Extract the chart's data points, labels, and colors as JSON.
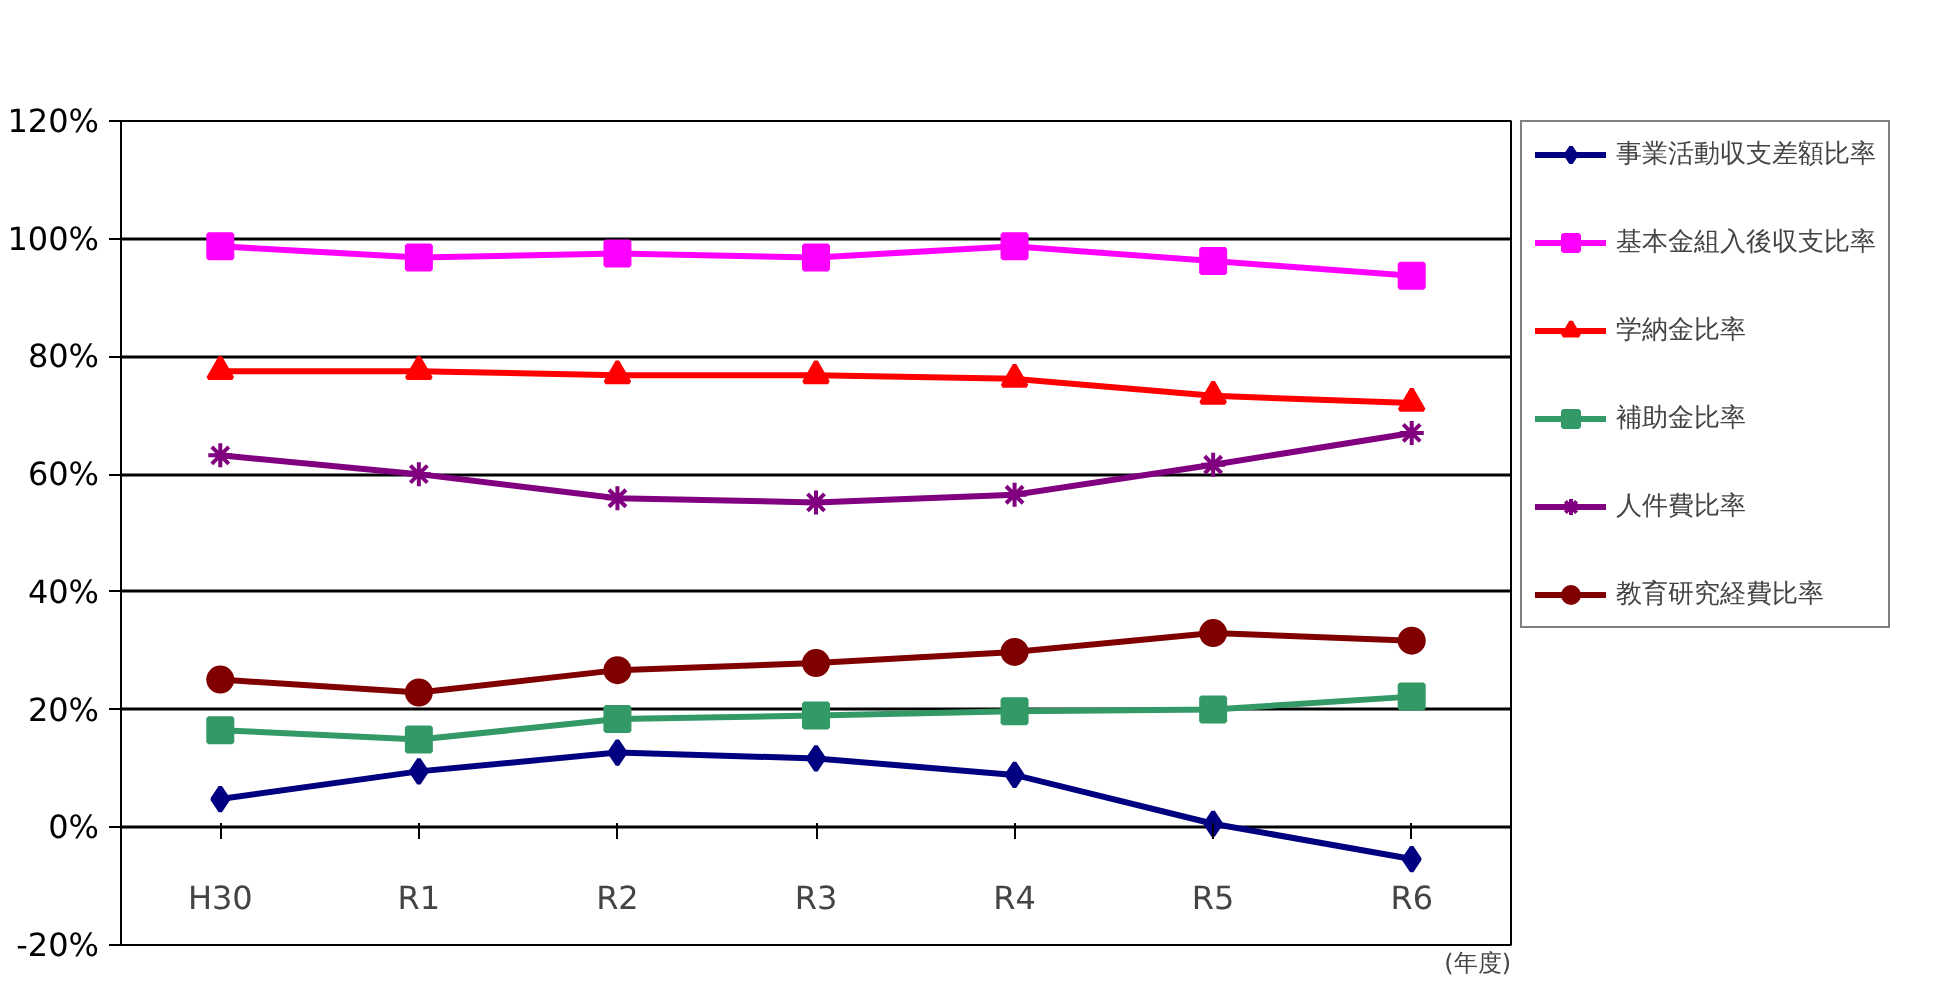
{
  "chart_data": {
    "type": "line",
    "categories": [
      "H30",
      "R1",
      "R2",
      "R3",
      "R4",
      "R5",
      "R6"
    ],
    "series": [
      {
        "name": "事業活動収支差額比率",
        "color": "#000080",
        "marker": "diamond",
        "values": [
          4.8,
          9.5,
          12.7,
          11.7,
          8.9,
          0.6,
          -5.4
        ]
      },
      {
        "name": "基本金組入後収支比率",
        "color": "#ff00ff",
        "marker": "square",
        "values": [
          98.7,
          96.8,
          97.5,
          96.8,
          98.7,
          96.2,
          93.7
        ]
      },
      {
        "name": "学納金比率",
        "color": "#ff0000",
        "marker": "triangle",
        "values": [
          77.5,
          77.5,
          76.8,
          76.8,
          76.2,
          73.3,
          72.1
        ]
      },
      {
        "name": "補助金比率",
        "color": "#339966",
        "marker": "square",
        "values": [
          16.5,
          14.9,
          18.4,
          19.0,
          19.7,
          20.0,
          22.2
        ]
      },
      {
        "name": "人件費比率",
        "color": "#800080",
        "marker": "cross",
        "values": [
          63.2,
          60.0,
          55.9,
          55.2,
          56.5,
          61.6,
          67.0
        ]
      },
      {
        "name": "教育研究経費比率",
        "color": "#800000",
        "marker": "circle",
        "values": [
          25.1,
          22.9,
          26.7,
          27.9,
          29.8,
          33.0,
          31.7
        ]
      }
    ],
    "ylim": [
      -20,
      120
    ],
    "yticks": [
      {
        "value": -20,
        "label": "-20%"
      },
      {
        "value": 0,
        "label": "0%"
      },
      {
        "value": 20,
        "label": "20%"
      },
      {
        "value": 40,
        "label": "40%"
      },
      {
        "value": 60,
        "label": "60%"
      },
      {
        "value": 80,
        "label": "80%"
      },
      {
        "value": 100,
        "label": "100%"
      },
      {
        "value": 120,
        "label": "120%"
      }
    ],
    "grid": "y",
    "legend": "right",
    "line_style": "solid",
    "annotations": [
      "(年度)"
    ]
  }
}
